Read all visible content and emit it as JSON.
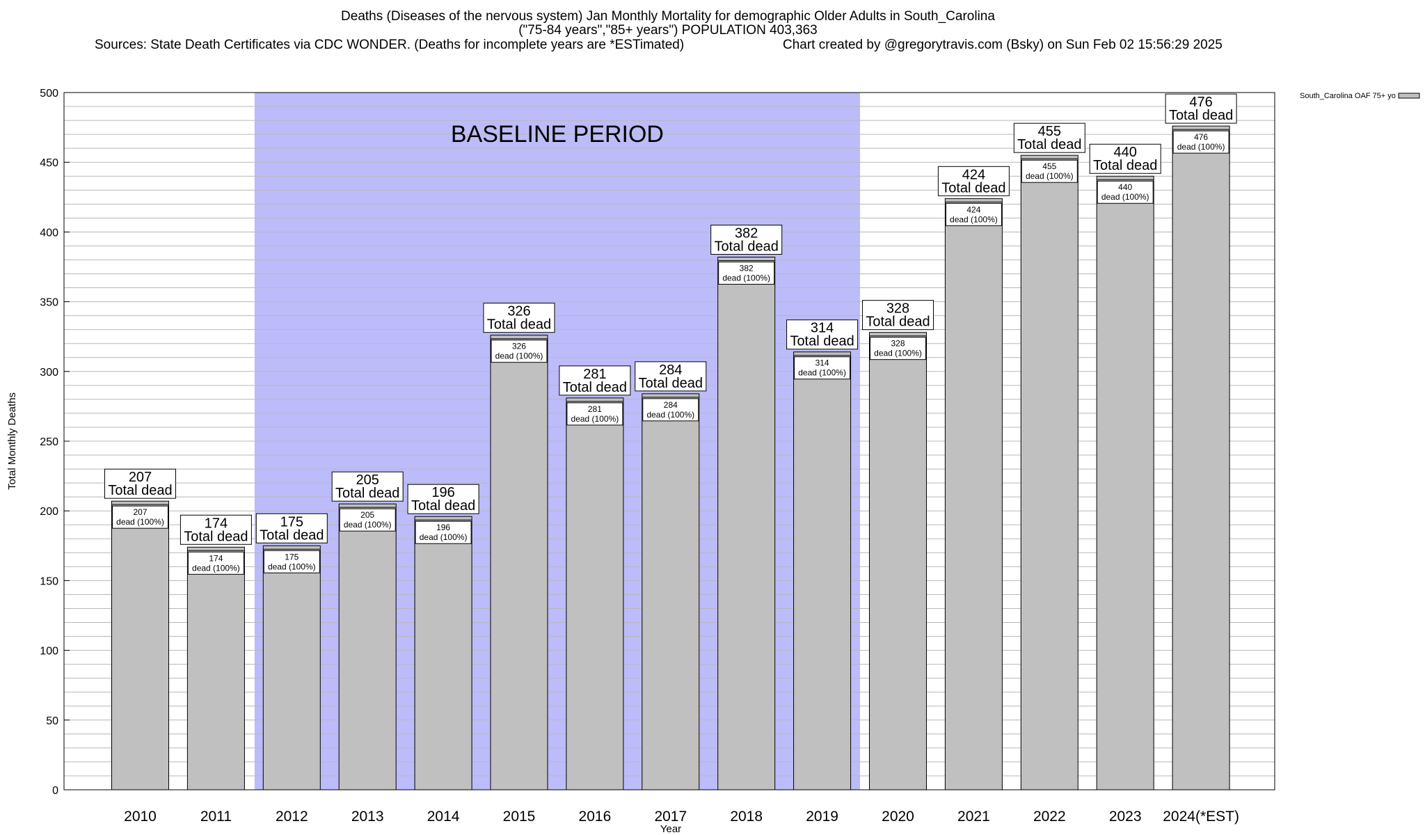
{
  "header": {
    "title_line1": "Deaths (Diseases of the nervous system) Jan Monthly Mortality for demographic Older Adults in South_Carolina",
    "title_line2": "(\"75-84 years\",\"85+ years\") POPULATION 403,363",
    "sources": "Sources: State Death Certificates via CDC WONDER. (Deaths for incomplete years are *ESTimated)",
    "credit": "Chart created by @gregorytravis.com (Bsky) on Sun Feb 02 15:56:29 2025"
  },
  "colors": {
    "bar_fill": "#c0c0c0",
    "baseline_band": "#bcbcfa",
    "grid": "#b8b8b8",
    "axis": "#000000"
  },
  "chart_data": {
    "type": "bar",
    "xlabel": "Year",
    "ylabel": "Total Monthly Deaths",
    "ylim": [
      0,
      500
    ],
    "yticks": [
      0,
      50,
      100,
      150,
      200,
      250,
      300,
      350,
      400,
      450,
      500
    ],
    "grid": true,
    "legend_position": "top-right",
    "categories": [
      "2010",
      "2011",
      "2012",
      "2013",
      "2014",
      "2015",
      "2016",
      "2017",
      "2018",
      "2019",
      "2020",
      "2021",
      "2022",
      "2023",
      "2024(*EST)"
    ],
    "series": [
      {
        "name": "South_Carolina OAF 75+ yo",
        "values": [
          207,
          174,
          175,
          205,
          196,
          326,
          281,
          284,
          382,
          314,
          328,
          424,
          455,
          440,
          476
        ]
      }
    ],
    "annotations": {
      "baseline_label": "BASELINE PERIOD",
      "baseline_range": [
        "2012",
        "2019"
      ],
      "total_label_suffix": "Total dead",
      "inner_label_suffix": "dead (100%)"
    }
  }
}
